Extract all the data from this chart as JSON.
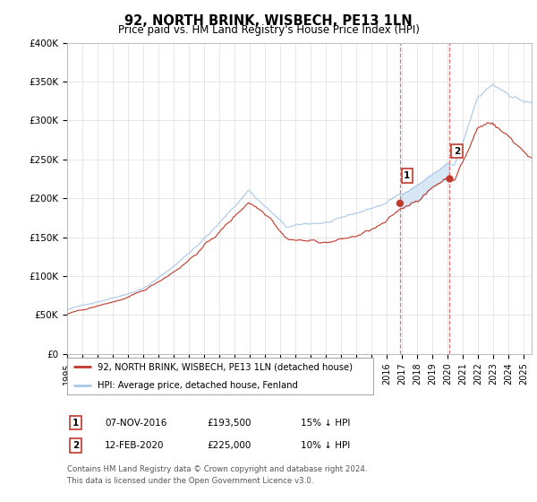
{
  "title": "92, NORTH BRINK, WISBECH, PE13 1LN",
  "subtitle": "Price paid vs. HM Land Registry's House Price Index (HPI)",
  "ylabel_ticks": [
    "£0",
    "£50K",
    "£100K",
    "£150K",
    "£200K",
    "£250K",
    "£300K",
    "£350K",
    "£400K"
  ],
  "ylim": [
    0,
    400000
  ],
  "xlim_start": 1995.0,
  "xlim_end": 2025.5,
  "hpi_color": "#a8c8e8",
  "price_color": "#c0392b",
  "vline_color": "#e05050",
  "shade_color": "#c8dff0",
  "annotation1": {
    "x": 2016.854,
    "label": "1",
    "price": 193500
  },
  "annotation2": {
    "x": 2020.12,
    "label": "2",
    "price": 225000
  },
  "legend_label1": "92, NORTH BRINK, WISBECH, PE13 1LN (detached house)",
  "legend_label2": "HPI: Average price, detached house, Fenland",
  "footer1": "Contains HM Land Registry data © Crown copyright and database right 2024.",
  "footer2": "This data is licensed under the Open Government Licence v3.0.",
  "background_color": "#ffffff",
  "grid_color": "#dddddd"
}
